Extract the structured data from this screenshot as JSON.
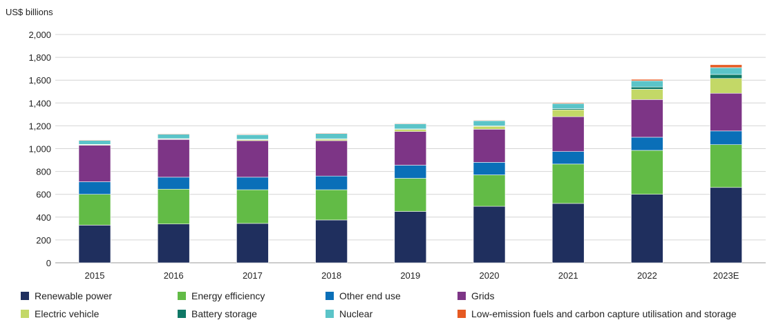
{
  "chart_data": {
    "type": "bar",
    "stacked": true,
    "ylabel": "US$ billions",
    "ylim": [
      0,
      2000
    ],
    "yticks": [
      0,
      200,
      400,
      600,
      800,
      1000,
      1200,
      1400,
      1600,
      1800,
      2000
    ],
    "ytick_labels": [
      "0",
      "200",
      "400",
      "600",
      "800",
      "1,000",
      "1,200",
      "1,400",
      "1,600",
      "1,800",
      "2,000"
    ],
    "grid": true,
    "legend_position": "bottom",
    "categories": [
      "2015",
      "2016",
      "2017",
      "2018",
      "2019",
      "2020",
      "2021",
      "2022",
      "2023E"
    ],
    "series": [
      {
        "name": "Renewable power",
        "color": "#1f2f5e",
        "values": [
          330,
          340,
          345,
          375,
          450,
          495,
          520,
          600,
          660
        ]
      },
      {
        "name": "Energy efficiency",
        "color": "#62bb46",
        "values": [
          270,
          305,
          295,
          265,
          290,
          275,
          345,
          385,
          375
        ]
      },
      {
        "name": "Other end use",
        "color": "#0a6fb8",
        "values": [
          110,
          105,
          110,
          120,
          115,
          110,
          110,
          115,
          120
        ]
      },
      {
        "name": "Grids",
        "color": "#7d3586",
        "values": [
          320,
          330,
          320,
          310,
          295,
          290,
          305,
          330,
          330
        ]
      },
      {
        "name": "Electric vehicle",
        "color": "#c3d867",
        "values": [
          5,
          5,
          8,
          12,
          18,
          25,
          60,
          90,
          130
        ]
      },
      {
        "name": "Battery storage",
        "color": "#0f7866",
        "values": [
          2,
          3,
          4,
          5,
          5,
          5,
          10,
          20,
          35
        ]
      },
      {
        "name": "Nuclear",
        "color": "#5bc4c8",
        "values": [
          35,
          38,
          40,
          45,
          45,
          45,
          45,
          55,
          60
        ]
      },
      {
        "name": "Low-emission fuels and carbon capture utilisation and storage",
        "color": "#e65a22",
        "values": [
          5,
          5,
          5,
          5,
          5,
          5,
          7,
          12,
          25
        ]
      }
    ]
  }
}
